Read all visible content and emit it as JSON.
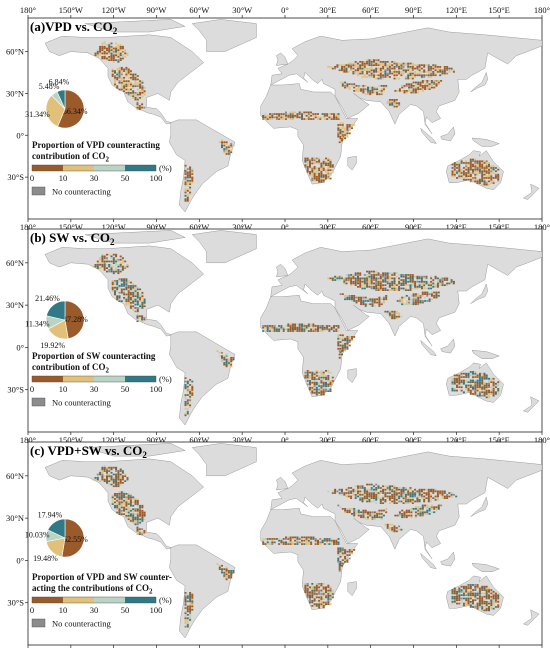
{
  "colors": {
    "class_0_10": "#9b5a2a",
    "class_10_30": "#e1c07a",
    "class_30_50": "#b9d4c4",
    "class_50_100": "#2f7a86",
    "no_counteracting": "#8c8c8c",
    "land": "#dcdcdc",
    "ocean": "#ffffff",
    "border": "#9a9a9a"
  },
  "top_lon_ticks": [
    "180°",
    "150°W",
    "120°W",
    "90°W",
    "60°W",
    "30°W",
    "0°",
    "30°E",
    "60°E",
    "90°E",
    "120°E",
    "150°E",
    "180°"
  ],
  "lat_ticks": [
    "60°N",
    "30°N",
    "0°",
    "30°S"
  ],
  "legend_scale": [
    "0",
    "10",
    "30",
    "50",
    "100"
  ],
  "legend_unit": "(%)",
  "legend_no": "No counteracting",
  "panels": [
    {
      "title_main": "(a)VPD vs. CO",
      "title_sub": "2",
      "legend_line1": "Proportion of VPD counteracting",
      "legend_line2_main": "contribution of CO",
      "legend_line2_sub": "2",
      "lon_ticks": [
        "180°",
        "150°W",
        "120°W",
        "90°W",
        "60°W",
        "30°W",
        "0°",
        "30°E",
        "60°E",
        "90°E",
        "120°E",
        "150°E",
        "180°"
      ],
      "pie": [
        {
          "label": "56.34%",
          "value": 56.34,
          "cls": "class_0_10"
        },
        {
          "label": "31.34%",
          "value": 31.34,
          "cls": "class_10_30"
        },
        {
          "label": "5.48%",
          "value": 5.48,
          "cls": "class_30_50"
        },
        {
          "label": "6.84%",
          "value": 6.84,
          "cls": "class_50_100"
        }
      ]
    },
    {
      "title_main": "(b) SW vs. CO",
      "title_sub": "2",
      "legend_line1": "Proportion of SW counteracting",
      "legend_line2_main": "contribution of CO",
      "legend_line2_sub": "2",
      "lon_ticks": [
        "180°",
        "150°W",
        "120°W",
        "90°W",
        "60°W",
        "30°W",
        "0°",
        "30°E",
        "60°E",
        "90°E",
        "120°E",
        "150°E",
        "180°"
      ],
      "pie": [
        {
          "label": "47.28%",
          "value": 47.28,
          "cls": "class_0_10"
        },
        {
          "label": "19.92%",
          "value": 19.92,
          "cls": "class_10_30"
        },
        {
          "label": "11.34%",
          "value": 11.34,
          "cls": "class_30_50"
        },
        {
          "label": "21.46%",
          "value": 21.46,
          "cls": "class_50_100"
        }
      ]
    },
    {
      "title_main": "(c) VPD+SW vs. CO",
      "title_sub": "2",
      "legend_line1": "Proportion of VPD and SW counter-",
      "legend_line2_main": "acting the contributions of CO",
      "legend_line2_sub": "2",
      "lon_ticks": [],
      "pie": [
        {
          "label": "52.55%",
          "value": 52.55,
          "cls": "class_0_10"
        },
        {
          "label": "19.48%",
          "value": 19.48,
          "cls": "class_10_30"
        },
        {
          "label": "10.03%",
          "value": 10.03,
          "cls": "class_30_50"
        },
        {
          "label": "17.94%",
          "value": 17.94,
          "cls": "class_50_100"
        }
      ]
    }
  ]
}
